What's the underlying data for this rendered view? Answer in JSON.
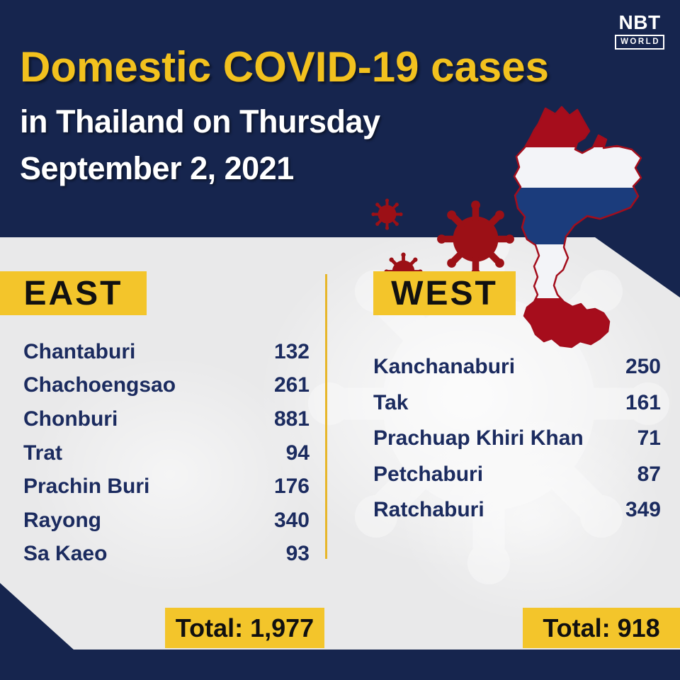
{
  "brand": {
    "name": "NBT",
    "world": "WORLD"
  },
  "header": {
    "title": "Domestic COVID-19 cases",
    "subtitle_line1": "in Thailand on Thursday",
    "subtitle_line2": "September 2, 2021"
  },
  "regions": {
    "east": {
      "label": "EAST",
      "rows": [
        {
          "province": "Chantaburi",
          "cases": "132"
        },
        {
          "province": "Chachoengsao",
          "cases": "261"
        },
        {
          "province": "Chonburi",
          "cases": "881"
        },
        {
          "province": "Trat",
          "cases": "94"
        },
        {
          "province": "Prachin Buri",
          "cases": "176"
        },
        {
          "province": "Rayong",
          "cases": "340"
        },
        {
          "province": "Sa Kaeo",
          "cases": "93"
        }
      ],
      "total": "Total: 1,977"
    },
    "west": {
      "label": "WEST",
      "rows": [
        {
          "province": "Kanchanaburi",
          "cases": "250"
        },
        {
          "province": "Tak",
          "cases": "161"
        },
        {
          "province": "Prachuap Khiri Khan",
          "cases": "71"
        },
        {
          "province": "Petchaburi",
          "cases": "87"
        },
        {
          "province": "Ratchaburi",
          "cases": "349"
        }
      ],
      "total": "Total: 918"
    }
  },
  "colors": {
    "navy": "#16254e",
    "yellow": "#f3c52b",
    "title_yellow": "#f2c11e",
    "text_navy": "#1b2b5f",
    "virus_red": "#9c1016",
    "map_red": "#a60d1c",
    "map_white": "#f3f4f8",
    "map_blue": "#1b3c7c",
    "body_gray": "#e9e9ea"
  },
  "chart_data": {
    "type": "table",
    "title": "Domestic COVID-19 cases in Thailand on Thursday September 2, 2021",
    "groups": [
      {
        "name": "EAST",
        "categories": [
          "Chantaburi",
          "Chachoengsao",
          "Chonburi",
          "Trat",
          "Prachin Buri",
          "Rayong",
          "Sa Kaeo"
        ],
        "values": [
          132,
          261,
          881,
          94,
          176,
          340,
          93
        ],
        "total": 1977
      },
      {
        "name": "WEST",
        "categories": [
          "Kanchanaburi",
          "Tak",
          "Prachuap Khiri Khan",
          "Petchaburi",
          "Ratchaburi"
        ],
        "values": [
          250,
          161,
          71,
          87,
          349
        ],
        "total": 918
      }
    ],
    "legend": "none",
    "source_brand": "NBT WORLD"
  }
}
